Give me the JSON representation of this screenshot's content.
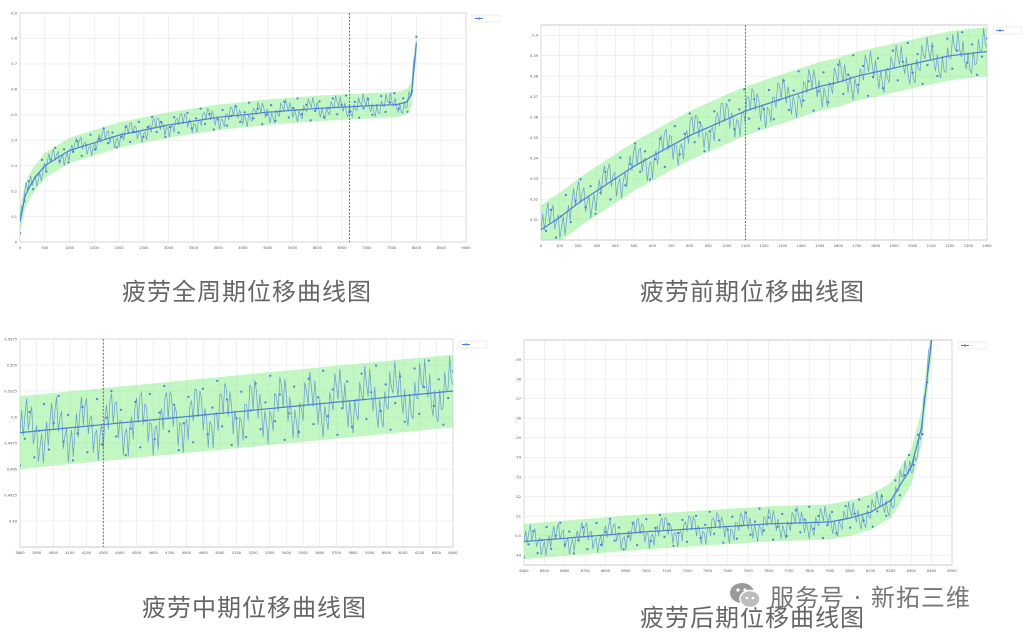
{
  "captions": {
    "full": "疲劳全周期位移曲线图",
    "early": "疲劳前期位移曲线图",
    "middle": "疲劳中期位移曲线图",
    "late": "疲劳后期位移曲线图"
  },
  "watermark": {
    "text": "服务号 · 新拓三维"
  },
  "colors": {
    "band": "#90ee90",
    "points": "#4a7fd6",
    "marker": "#cc3333",
    "grid": "#e6e6e6"
  },
  "chart_data": [
    {
      "id": "full",
      "type": "line",
      "title": "",
      "xlabel": "",
      "ylabel": "",
      "legend": "",
      "x": [
        0,
        100,
        250,
        500,
        1000,
        2000,
        3000,
        4000,
        5000,
        6000,
        7000,
        7600,
        7800,
        7900,
        8000
      ],
      "y": [
        0.08,
        0.18,
        0.24,
        0.3,
        0.36,
        0.42,
        0.46,
        0.49,
        0.51,
        0.525,
        0.535,
        0.54,
        0.55,
        0.58,
        0.78
      ],
      "band_half_width": 0.05,
      "xlim": [
        0,
        9000
      ],
      "ylim": [
        0.0,
        0.9
      ],
      "xticks": [
        0,
        500,
        1000,
        1500,
        2000,
        2500,
        3000,
        3500,
        4000,
        4500,
        5000,
        5500,
        6000,
        6500,
        7000,
        7500,
        8000,
        8500,
        9000
      ],
      "yticks": [
        0,
        0.1,
        0.2,
        0.3,
        0.4,
        0.5,
        0.6,
        0.7,
        0.8,
        0.9
      ],
      "ytick_labels": [
        "0",
        "0.1",
        "0.2",
        "0.3",
        "0.4",
        "0.5",
        "0.6",
        "0.7",
        "0.8",
        "0.9"
      ],
      "marker_x": 6650,
      "grid": true,
      "legend_position": "top-right"
    },
    {
      "id": "early",
      "type": "line",
      "title": "",
      "xlabel": "",
      "ylabel": "",
      "legend": "",
      "x": [
        0,
        100,
        200,
        300,
        400,
        500,
        600,
        700,
        800,
        900,
        1000,
        1100,
        1200,
        1300,
        1400,
        1500,
        1600,
        1700,
        1800,
        1900,
        2000,
        2100,
        2200,
        2300,
        2400
      ],
      "y": [
        0.305,
        0.311,
        0.318,
        0.324,
        0.33,
        0.336,
        0.341,
        0.346,
        0.351,
        0.355,
        0.359,
        0.363,
        0.366,
        0.369,
        0.372,
        0.375,
        0.377,
        0.38,
        0.382,
        0.384,
        0.386,
        0.388,
        0.39,
        0.391,
        0.392
      ],
      "band_half_width": 0.012,
      "xlim": [
        0,
        2400
      ],
      "ylim": [
        0.3,
        0.405
      ],
      "xticks": [
        0,
        100,
        200,
        300,
        400,
        500,
        600,
        700,
        800,
        900,
        1000,
        1100,
        1200,
        1300,
        1400,
        1500,
        1600,
        1700,
        1800,
        1900,
        2000,
        2100,
        2200,
        2300,
        2400
      ],
      "yticks": [
        0.31,
        0.32,
        0.33,
        0.34,
        0.35,
        0.36,
        0.37,
        0.38,
        0.39,
        0.4
      ],
      "ytick_labels": [
        "0.31",
        "0.32",
        "0.33",
        "0.34",
        "0.35",
        "0.36",
        "0.37",
        "0.38",
        "0.39",
        "0.4"
      ],
      "marker_x": 1100,
      "grid": true,
      "legend_position": "top-right"
    },
    {
      "id": "middle",
      "type": "line",
      "title": "",
      "xlabel": "",
      "ylabel": "",
      "legend": "",
      "x": [
        3800,
        6400
      ],
      "y": [
        0.4985,
        0.5025
      ],
      "band_half_width": 0.0035,
      "xlim": [
        3800,
        6400
      ],
      "ylim": [
        0.4875,
        0.5075
      ],
      "xticks": [
        3800,
        3900,
        4000,
        4100,
        4200,
        4300,
        4400,
        4500,
        4600,
        4700,
        4800,
        4900,
        5000,
        5100,
        5200,
        5300,
        5400,
        5500,
        5600,
        5700,
        5800,
        5900,
        6000,
        6100,
        6200,
        6300,
        6400
      ],
      "yticks": [
        0.49,
        0.4925,
        0.495,
        0.4975,
        0.5,
        0.5025,
        0.505,
        0.5075
      ],
      "ytick_labels": [
        "0.49",
        "0.4925",
        "0.495",
        "0.4975",
        "0.5",
        "0.5025",
        "0.505",
        "0.5075"
      ],
      "marker_x": 4300,
      "grid": true,
      "legend_position": "top-right"
    },
    {
      "id": "late",
      "type": "line",
      "title": "",
      "xlabel": "",
      "ylabel": "",
      "legend": "",
      "x": [
        6400,
        7000,
        7600,
        7900,
        8000,
        8100,
        8200,
        8300,
        8350,
        8400
      ],
      "y": [
        0.497,
        0.502,
        0.506,
        0.507,
        0.509,
        0.512,
        0.518,
        0.535,
        0.555,
        0.6
      ],
      "band_half_width": 0.009,
      "xlim": [
        6400,
        8500
      ],
      "ylim": [
        0.485,
        0.6
      ],
      "xticks": [
        6400,
        6500,
        6600,
        6700,
        6800,
        6900,
        7000,
        7100,
        7200,
        7300,
        7400,
        7500,
        7600,
        7700,
        7800,
        7900,
        8000,
        8100,
        8200,
        8300,
        8400,
        8500
      ],
      "yticks": [
        0.49,
        0.5,
        0.51,
        0.52,
        0.53,
        0.54,
        0.55,
        0.56,
        0.57,
        0.58,
        0.59
      ],
      "ytick_labels": [
        "0.49",
        "0.5",
        "0.51",
        "0.52",
        "0.53",
        "0.54",
        "0.55",
        "0.56",
        "0.57",
        "0.58",
        "0.59"
      ],
      "marker_x": null,
      "grid": true,
      "legend_position": "top-right"
    }
  ]
}
